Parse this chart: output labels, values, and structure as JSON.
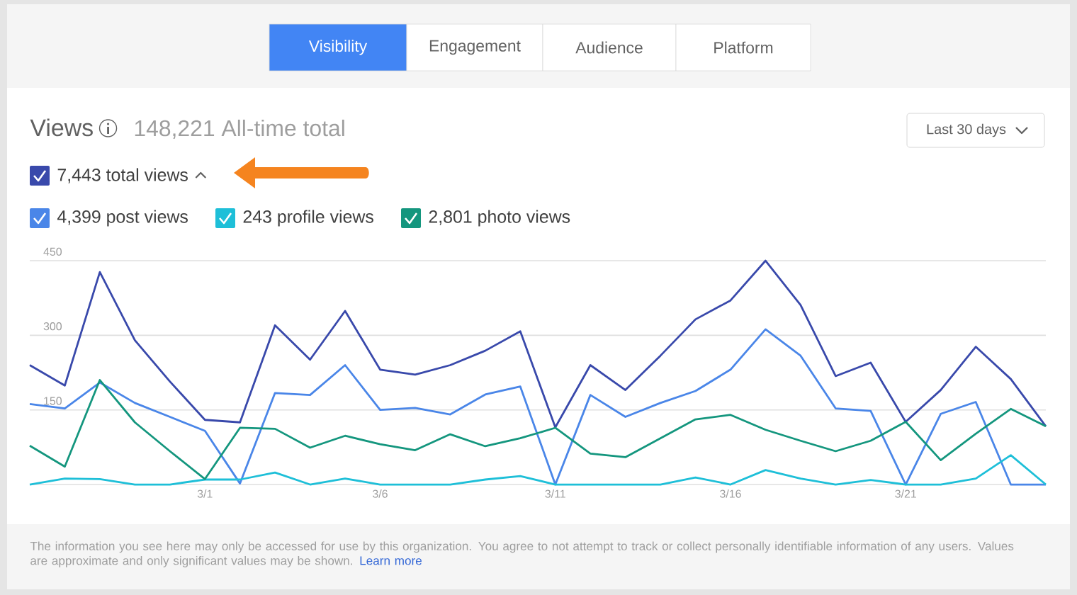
{
  "chart_data": {
    "type": "line",
    "title": "Views",
    "subtitle": "148,221 All-time total",
    "categories": [
      null,
      null,
      null,
      null,
      null,
      "3/1",
      null,
      null,
      null,
      null,
      "3/6",
      null,
      null,
      null,
      null,
      "3/11",
      null,
      null,
      null,
      null,
      "3/16",
      null,
      null,
      null,
      null,
      "3/21",
      null,
      null,
      null,
      null
    ],
    "series": [
      {
        "name": "7,443 total views",
        "color": "#3949ab",
        "values": [
          240,
          199,
          427,
          290,
          207,
          130,
          125,
          320,
          251,
          349,
          231,
          221,
          240,
          269,
          308,
          115,
          240,
          190,
          259,
          332,
          370,
          450,
          361,
          218,
          245,
          126,
          190,
          277,
          212,
          117
        ]
      },
      {
        "name": "4,399 post views",
        "color": "#4a86e8",
        "values": [
          162,
          153,
          205,
          164,
          136,
          108,
          2,
          184,
          180,
          240,
          150,
          154,
          141,
          181,
          197,
          0,
          180,
          136,
          164,
          188,
          231,
          312,
          259,
          153,
          148,
          0,
          142,
          166,
          0,
          0
        ]
      },
      {
        "name": "243 profile views",
        "color": "#1ebfd8",
        "values": [
          0,
          12,
          11,
          0,
          0,
          10,
          10,
          24,
          0,
          12,
          0,
          0,
          0,
          10,
          17,
          0,
          0,
          0,
          0,
          14,
          0,
          29,
          12,
          0,
          9,
          0,
          0,
          12,
          59,
          0
        ]
      },
      {
        "name": "2,801 photo views",
        "color": "#14967e",
        "values": [
          78,
          36,
          210,
          125,
          67,
          11,
          114,
          112,
          74,
          98,
          81,
          69,
          101,
          77,
          93,
          114,
          62,
          55,
          93,
          131,
          140,
          110,
          88,
          67,
          88,
          126,
          49,
          102,
          152,
          117
        ]
      }
    ],
    "ylim": [
      0,
      450
    ],
    "yticks": [
      {
        "value": 0,
        "label": null
      },
      150,
      300,
      450
    ],
    "grid": "y",
    "legend": "top left",
    "annotations": [
      "Visibility",
      "Engagement",
      "Audience",
      "Platform",
      "Last 30 days",
      "The information you see here may only be accessed for use by this organization. You agree to not attempt to track or collect personally identifiable information of any users. Values are approximate and only significant values may be shown.",
      "Learn more"
    ]
  }
}
